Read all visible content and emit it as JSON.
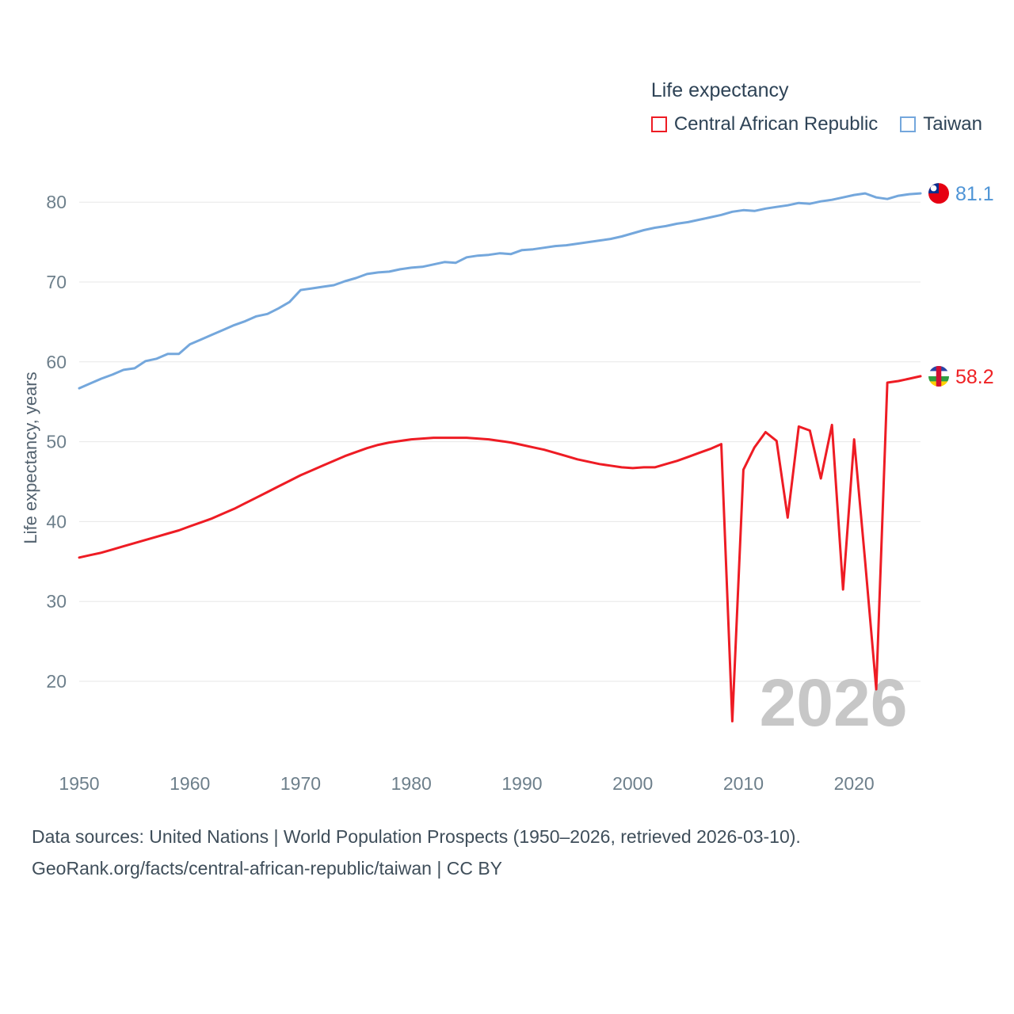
{
  "legend": {
    "title": "Life expectancy",
    "items": [
      {
        "label": "Central African Republic",
        "color": "#ee1c24"
      },
      {
        "label": "Taiwan",
        "color": "#74a7dc"
      }
    ]
  },
  "chart_data": {
    "type": "line",
    "title": "Life expectancy",
    "ylabel": "Life expectancy, years",
    "xlabel": "",
    "grid": "horizontal",
    "legend_position": "top-right",
    "watermark": "2026",
    "xlim": [
      1950,
      2026
    ],
    "ylim": [
      15,
      85
    ],
    "yticks": [
      20,
      30,
      40,
      50,
      60,
      70,
      80
    ],
    "xticks": [
      1950,
      1960,
      1970,
      1980,
      1990,
      2000,
      2010,
      2020
    ],
    "x": [
      1950,
      1951,
      1952,
      1953,
      1954,
      1955,
      1956,
      1957,
      1958,
      1959,
      1960,
      1961,
      1962,
      1963,
      1964,
      1965,
      1966,
      1967,
      1968,
      1969,
      1970,
      1971,
      1972,
      1973,
      1974,
      1975,
      1976,
      1977,
      1978,
      1979,
      1980,
      1981,
      1982,
      1983,
      1984,
      1985,
      1986,
      1987,
      1988,
      1989,
      1990,
      1991,
      1992,
      1993,
      1994,
      1995,
      1996,
      1997,
      1998,
      1999,
      2000,
      2001,
      2002,
      2003,
      2004,
      2005,
      2006,
      2007,
      2008,
      2009,
      2010,
      2011,
      2012,
      2013,
      2014,
      2015,
      2016,
      2017,
      2018,
      2019,
      2020,
      2021,
      2022,
      2023,
      2024,
      2025,
      2026
    ],
    "series": [
      {
        "name": "Central African Republic",
        "color": "#ee1c24",
        "end_label": "58.2",
        "end_label_color": "#ef2124",
        "flag": "central-african-republic",
        "values": [
          35.5,
          35.8,
          36.1,
          36.5,
          36.9,
          37.3,
          37.7,
          38.1,
          38.5,
          38.9,
          39.4,
          39.9,
          40.4,
          41.0,
          41.6,
          42.3,
          43.0,
          43.7,
          44.4,
          45.1,
          45.8,
          46.4,
          47.0,
          47.6,
          48.2,
          48.7,
          49.2,
          49.6,
          49.9,
          50.1,
          50.3,
          50.4,
          50.5,
          50.5,
          50.5,
          50.5,
          50.4,
          50.3,
          50.1,
          49.9,
          49.6,
          49.3,
          49.0,
          48.6,
          48.2,
          47.8,
          47.5,
          47.2,
          47.0,
          46.8,
          46.7,
          46.8,
          46.8,
          47.2,
          47.6,
          48.1,
          48.6,
          49.1,
          49.7,
          15.0,
          46.5,
          49.3,
          51.2,
          50.1,
          40.5,
          51.9,
          51.4,
          45.4,
          52.1,
          31.5,
          50.3,
          35.0,
          19.0,
          57.4,
          57.6,
          57.9,
          58.2
        ]
      },
      {
        "name": "Taiwan",
        "color": "#74a7dc",
        "end_label": "81.1",
        "end_label_color": "#4e94d6",
        "flag": "taiwan",
        "values": [
          56.7,
          57.3,
          57.9,
          58.4,
          59.0,
          59.2,
          60.1,
          60.4,
          61.0,
          61.0,
          62.2,
          62.8,
          63.4,
          64.0,
          64.6,
          65.1,
          65.7,
          66.0,
          66.7,
          67.5,
          69.0,
          69.2,
          69.4,
          69.6,
          70.1,
          70.5,
          71.0,
          71.2,
          71.3,
          71.6,
          71.8,
          71.9,
          72.2,
          72.5,
          72.4,
          73.1,
          73.3,
          73.4,
          73.6,
          73.5,
          74.0,
          74.1,
          74.3,
          74.5,
          74.6,
          74.8,
          75.0,
          75.2,
          75.4,
          75.7,
          76.1,
          76.5,
          76.8,
          77.0,
          77.3,
          77.5,
          77.8,
          78.1,
          78.4,
          78.8,
          79.0,
          78.9,
          79.2,
          79.4,
          79.6,
          79.9,
          79.8,
          80.1,
          80.3,
          80.6,
          80.9,
          81.1,
          80.6,
          80.4,
          80.8,
          81.0,
          81.1
        ]
      }
    ]
  },
  "footer": {
    "line1": "Data sources: United Nations | World Population Prospects (1950–2026, retrieved 2026-03-10).",
    "line2": "GeoRank.org/facts/central-african-republic/taiwan | CC BY"
  }
}
